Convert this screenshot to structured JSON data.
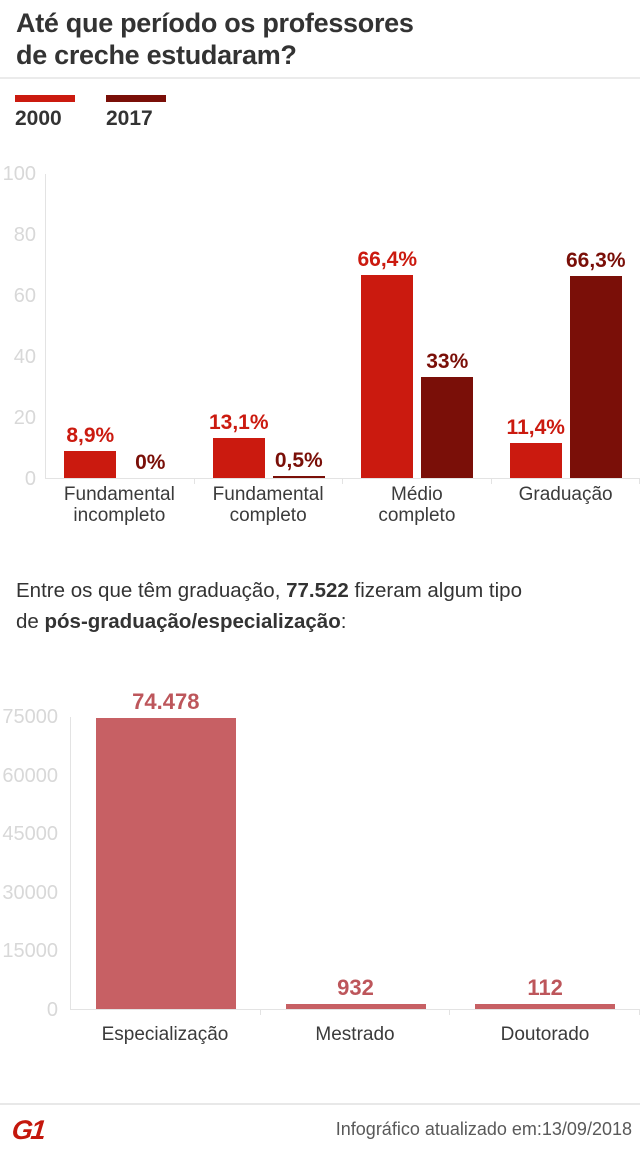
{
  "header": {
    "title_line1": "Até que período os professores",
    "title_line2": "de creche estudaram?"
  },
  "note": {
    "l1_pre": "Entre os que têm graduação, ",
    "l1_bold": "77.522",
    "l1_post": " fizeram algum tipo",
    "l2_pre": "de ",
    "l2_bold": "pós-graduação/especialização",
    "l2_post": ":"
  },
  "footer": {
    "logo": "G1",
    "updated": "Infográfico atualizado em:13/09/2018"
  },
  "colors": {
    "series_2000": "#cb1a0f",
    "series_2017": "#7a0f08",
    "postgrad_bar": "#c76064",
    "postgrad_label": "#bd565b",
    "axis": "#e3e3e3",
    "tick_label": "#d8d8d8"
  },
  "chart_data": [
    {
      "type": "bar",
      "title": "Até que período os professores de creche estudaram?",
      "categories": [
        "Fundamental incompleto",
        "Fundamental completo",
        "Médio completo",
        "Graduação"
      ],
      "series": [
        {
          "name": "2000",
          "color": "#cb1a0f",
          "values": [
            8.9,
            13.1,
            66.4,
            11.4
          ],
          "labels": [
            "8,9%",
            "13,1%",
            "66,4%",
            "11,4%"
          ]
        },
        {
          "name": "2017",
          "color": "#7a0f08",
          "values": [
            0,
            0.5,
            33,
            66.3
          ],
          "labels": [
            "0%",
            "0,5%",
            "33%",
            "66,3%"
          ]
        }
      ],
      "xlabel": "",
      "ylabel": "",
      "ylim": [
        0,
        100
      ],
      "yticks": [
        0,
        20,
        40,
        60,
        80,
        100
      ],
      "grid": false,
      "legend_position": "top-left"
    },
    {
      "type": "bar",
      "title": "Pós-graduação/especialização",
      "categories": [
        "Especialização",
        "Mestrado",
        "Doutorado"
      ],
      "values": [
        74478,
        932,
        112
      ],
      "labels": [
        "74.478",
        "932",
        "112"
      ],
      "bar_color": "#c76064",
      "label_color": "#bd565b",
      "xlabel": "",
      "ylabel": "",
      "ylim": [
        0,
        75000
      ],
      "yticks": [
        0,
        15000,
        30000,
        45000,
        60000,
        75000
      ],
      "grid": false,
      "legend_position": "none"
    }
  ]
}
